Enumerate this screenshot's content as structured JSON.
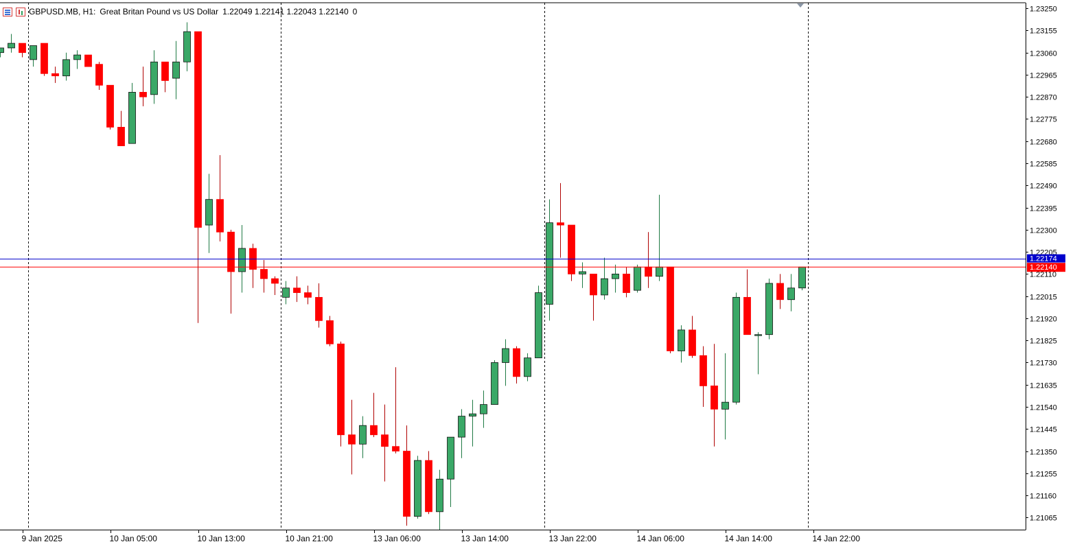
{
  "header": {
    "symbol": "GBPUSD.MB, H1:",
    "description": "Great Britan Pound vs US Dollar",
    "ohlc": "1.22049 1.22141 1.22043 1.22140",
    "extra": "0"
  },
  "colors": {
    "bull": "#3aa867",
    "bear": "#ff0000",
    "ask_line": "#0000cc",
    "bid_line": "#ff0000",
    "grid": "#000000"
  },
  "icons": [
    "chart-list-icon",
    "chart-type-icon",
    "scroll-marker-icon"
  ],
  "price_labels": {
    "ask": "1.22174",
    "bid": "1.22140"
  },
  "chart_data": {
    "type": "candlestick",
    "timeframe": "H1",
    "ylim": [
      1.21013,
      1.23274
    ],
    "y_ticks": [
      "1.23250",
      "1.23155",
      "1.23060",
      "1.22965",
      "1.22870",
      "1.22775",
      "1.22680",
      "1.22585",
      "1.22490",
      "1.22395",
      "1.22300",
      "1.22205",
      "1.22110",
      "1.22015",
      "1.21920",
      "1.21825",
      "1.21730",
      "1.21635",
      "1.21540",
      "1.21445",
      "1.21350",
      "1.21255",
      "1.21160",
      "1.21065"
    ],
    "x_labels": [
      {
        "text": "9 Jan 2025",
        "bar": 2
      },
      {
        "text": "10 Jan 05:00",
        "bar": 10
      },
      {
        "text": "10 Jan 13:00",
        "bar": 18
      },
      {
        "text": "10 Jan 21:00",
        "bar": 26
      },
      {
        "text": "13 Jan 06:00",
        "bar": 34
      },
      {
        "text": "13 Jan 14:00",
        "bar": 42
      },
      {
        "text": "13 Jan 22:00",
        "bar": 50
      },
      {
        "text": "14 Jan 06:00",
        "bar": 58
      },
      {
        "text": "14 Jan 14:00",
        "bar": 66
      },
      {
        "text": "14 Jan 22:00",
        "bar": 74
      }
    ],
    "day_separators_bar": [
      2.5,
      25.5,
      49.5,
      73.5
    ],
    "candles": [
      [
        1.2306,
        1.2308,
        1.2304,
        1.2308
      ],
      [
        1.2308,
        1.2314,
        1.2306,
        1.231
      ],
      [
        1.231,
        1.231,
        1.2304,
        1.2306
      ],
      [
        1.2303,
        1.2309,
        1.23,
        1.2309
      ],
      [
        1.231,
        1.231,
        1.2296,
        1.2297
      ],
      [
        1.2297,
        1.23,
        1.2293,
        1.2296
      ],
      [
        1.2296,
        1.2306,
        1.2294,
        1.2303
      ],
      [
        1.2303,
        1.2307,
        1.2299,
        1.2305
      ],
      [
        1.2305,
        1.2305,
        1.23,
        1.23
      ],
      [
        1.2301,
        1.2302,
        1.229,
        1.2292
      ],
      [
        1.2292,
        1.2292,
        1.2273,
        1.2274
      ],
      [
        1.2274,
        1.2281,
        1.2266,
        1.2266
      ],
      [
        1.2267,
        1.2293,
        1.2267,
        1.2289
      ],
      [
        1.2289,
        1.23,
        1.2283,
        1.2287
      ],
      [
        1.2288,
        1.2307,
        1.2284,
        1.2302
      ],
      [
        1.2302,
        1.2302,
        1.2289,
        1.2294
      ],
      [
        1.2295,
        1.2311,
        1.2286,
        1.2302
      ],
      [
        1.2302,
        1.2319,
        1.2298,
        1.2315
      ],
      [
        1.2315,
        1.2315,
        1.219,
        1.2231
      ],
      [
        1.2232,
        1.2254,
        1.222,
        1.2243
      ],
      [
        1.2243,
        1.2262,
        1.2225,
        1.2229
      ],
      [
        1.2229,
        1.223,
        1.2194,
        1.2212
      ],
      [
        1.2212,
        1.2232,
        1.2203,
        1.2222
      ],
      [
        1.2222,
        1.2224,
        1.2205,
        1.2213
      ],
      [
        1.2213,
        1.2217,
        1.2203,
        1.2209
      ],
      [
        1.2209,
        1.221,
        1.2202,
        1.2207
      ],
      [
        1.2201,
        1.2208,
        1.2198,
        1.2205
      ],
      [
        1.2205,
        1.221,
        1.2199,
        1.2203
      ],
      [
        1.2203,
        1.2206,
        1.2198,
        1.2201
      ],
      [
        1.2201,
        1.2207,
        1.2188,
        1.2191
      ],
      [
        1.2191,
        1.2193,
        1.218,
        1.2181
      ],
      [
        1.2181,
        1.2182,
        1.2137,
        1.2142
      ],
      [
        1.2142,
        1.2157,
        1.2125,
        1.2138
      ],
      [
        1.2138,
        1.215,
        1.2132,
        1.2146
      ],
      [
        1.2146,
        1.216,
        1.2141,
        1.2142
      ],
      [
        1.2142,
        1.2155,
        1.2122,
        1.2137
      ],
      [
        1.2137,
        1.2171,
        1.2134,
        1.2135
      ],
      [
        1.2135,
        1.2146,
        1.2103,
        1.2107
      ],
      [
        1.2107,
        1.2133,
        1.2106,
        1.2131
      ],
      [
        1.2131,
        1.2135,
        1.2108,
        1.2109
      ],
      [
        1.2109,
        1.2127,
        1.2101,
        1.2123
      ],
      [
        1.2123,
        1.2141,
        1.2111,
        1.2141
      ],
      [
        1.2141,
        1.2153,
        1.2132,
        1.215
      ],
      [
        1.215,
        1.2157,
        1.2137,
        1.2151
      ],
      [
        1.2151,
        1.2161,
        1.2145,
        1.2155
      ],
      [
        1.2155,
        1.2174,
        1.2155,
        1.2173
      ],
      [
        1.2173,
        1.2183,
        1.2163,
        1.2179
      ],
      [
        1.2179,
        1.218,
        1.2164,
        1.2167
      ],
      [
        1.2167,
        1.2177,
        1.2165,
        1.2175
      ],
      [
        1.2175,
        1.2206,
        1.2175,
        1.2203
      ],
      [
        1.2198,
        1.2243,
        1.2191,
        1.2233
      ],
      [
        1.2233,
        1.225,
        1.2218,
        1.2232
      ],
      [
        1.2232,
        1.2232,
        1.2208,
        1.2211
      ],
      [
        1.2211,
        1.2216,
        1.2205,
        1.2212
      ],
      [
        1.2211,
        1.2211,
        1.2191,
        1.2202
      ],
      [
        1.2202,
        1.2218,
        1.22,
        1.2209
      ],
      [
        1.2209,
        1.2215,
        1.2203,
        1.2211
      ],
      [
        1.2211,
        1.2214,
        1.2201,
        1.2203
      ],
      [
        1.2204,
        1.2215,
        1.2203,
        1.2214
      ],
      [
        1.2214,
        1.2229,
        1.2205,
        1.221
      ],
      [
        1.221,
        1.2245,
        1.2208,
        1.2214
      ],
      [
        1.2214,
        1.2214,
        1.2177,
        1.2178
      ],
      [
        1.2178,
        1.2189,
        1.2173,
        1.2187
      ],
      [
        1.2187,
        1.2193,
        1.2175,
        1.2176
      ],
      [
        1.2176,
        1.218,
        1.2154,
        1.2163
      ],
      [
        1.2163,
        1.2181,
        1.2137,
        1.2153
      ],
      [
        1.2153,
        1.2177,
        1.214,
        1.2156
      ],
      [
        1.2156,
        1.2203,
        1.2155,
        1.2201
      ],
      [
        1.2201,
        1.2213,
        1.2185,
        1.2185
      ],
      [
        1.2185,
        1.2186,
        1.2168,
        1.2185
      ],
      [
        1.2185,
        1.2209,
        1.2183,
        1.2207
      ],
      [
        1.2207,
        1.2211,
        1.2196,
        1.22
      ],
      [
        1.22,
        1.2211,
        1.2195,
        1.2205
      ],
      [
        1.2205,
        1.2214,
        1.2204,
        1.2214
      ]
    ]
  }
}
